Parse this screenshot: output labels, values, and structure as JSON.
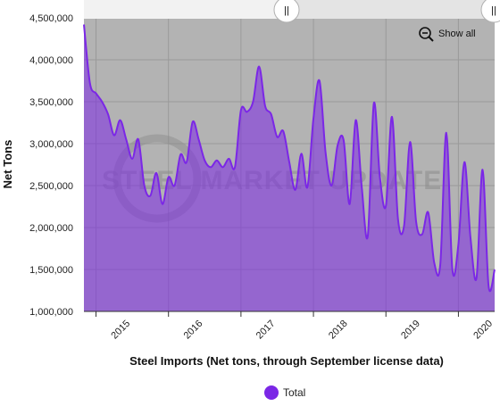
{
  "chart_data": {
    "type": "area",
    "xlabel": "Steel Imports (Net tons, through September license data)",
    "ylabel": "Net Tons",
    "ylim": [
      1000000,
      4500000
    ],
    "y_ticks": [
      1000000,
      1500000,
      2000000,
      2500000,
      3000000,
      3500000,
      4000000,
      4500000
    ],
    "y_tick_labels": [
      "1,000,000",
      "1,500,000",
      "2,000,000",
      "2,500,000",
      "3,000,000",
      "3,500,000",
      "4,000,000",
      "4,500,000"
    ],
    "x_tick_labels": [
      "2015",
      "2016",
      "2017",
      "2018",
      "2019",
      "2020"
    ],
    "x_start_year": 2014,
    "months_per_year": 12,
    "series": [
      {
        "name": "Total",
        "color": "#7b27e6",
        "values": [
          4420000,
          3720000,
          3600000,
          3500000,
          3350000,
          3100000,
          3280000,
          3050000,
          2820000,
          3050000,
          2500000,
          2380000,
          2650000,
          2280000,
          2600000,
          2500000,
          2870000,
          2780000,
          3260000,
          3050000,
          2800000,
          2720000,
          2800000,
          2720000,
          2820000,
          2720000,
          3400000,
          3380000,
          3500000,
          3920000,
          3450000,
          3350000,
          3080000,
          3150000,
          2780000,
          2450000,
          2880000,
          2480000,
          3300000,
          3750000,
          2900000,
          2500000,
          2980000,
          3040000,
          2280000,
          3280000,
          2480000,
          1900000,
          3480000,
          2600000,
          2260000,
          3320000,
          2100000,
          2020000,
          3020000,
          2070000,
          1920000,
          2180000,
          1580000,
          1560000,
          3130000,
          1500000,
          1800000,
          2780000,
          1880000,
          1400000,
          2690000,
          1300000,
          1500000
        ]
      }
    ],
    "grid": true,
    "legend_position": "bottom-center",
    "watermark": "STEEL MARKET UPDATE"
  },
  "navigator": {
    "left_handle_label": "||",
    "right_handle_label": "||"
  },
  "show_all": {
    "label": "Show all",
    "icon": "zoom-out-icon"
  },
  "legend": {
    "items": [
      {
        "label": "Total",
        "color": "#7b27e6"
      }
    ]
  }
}
